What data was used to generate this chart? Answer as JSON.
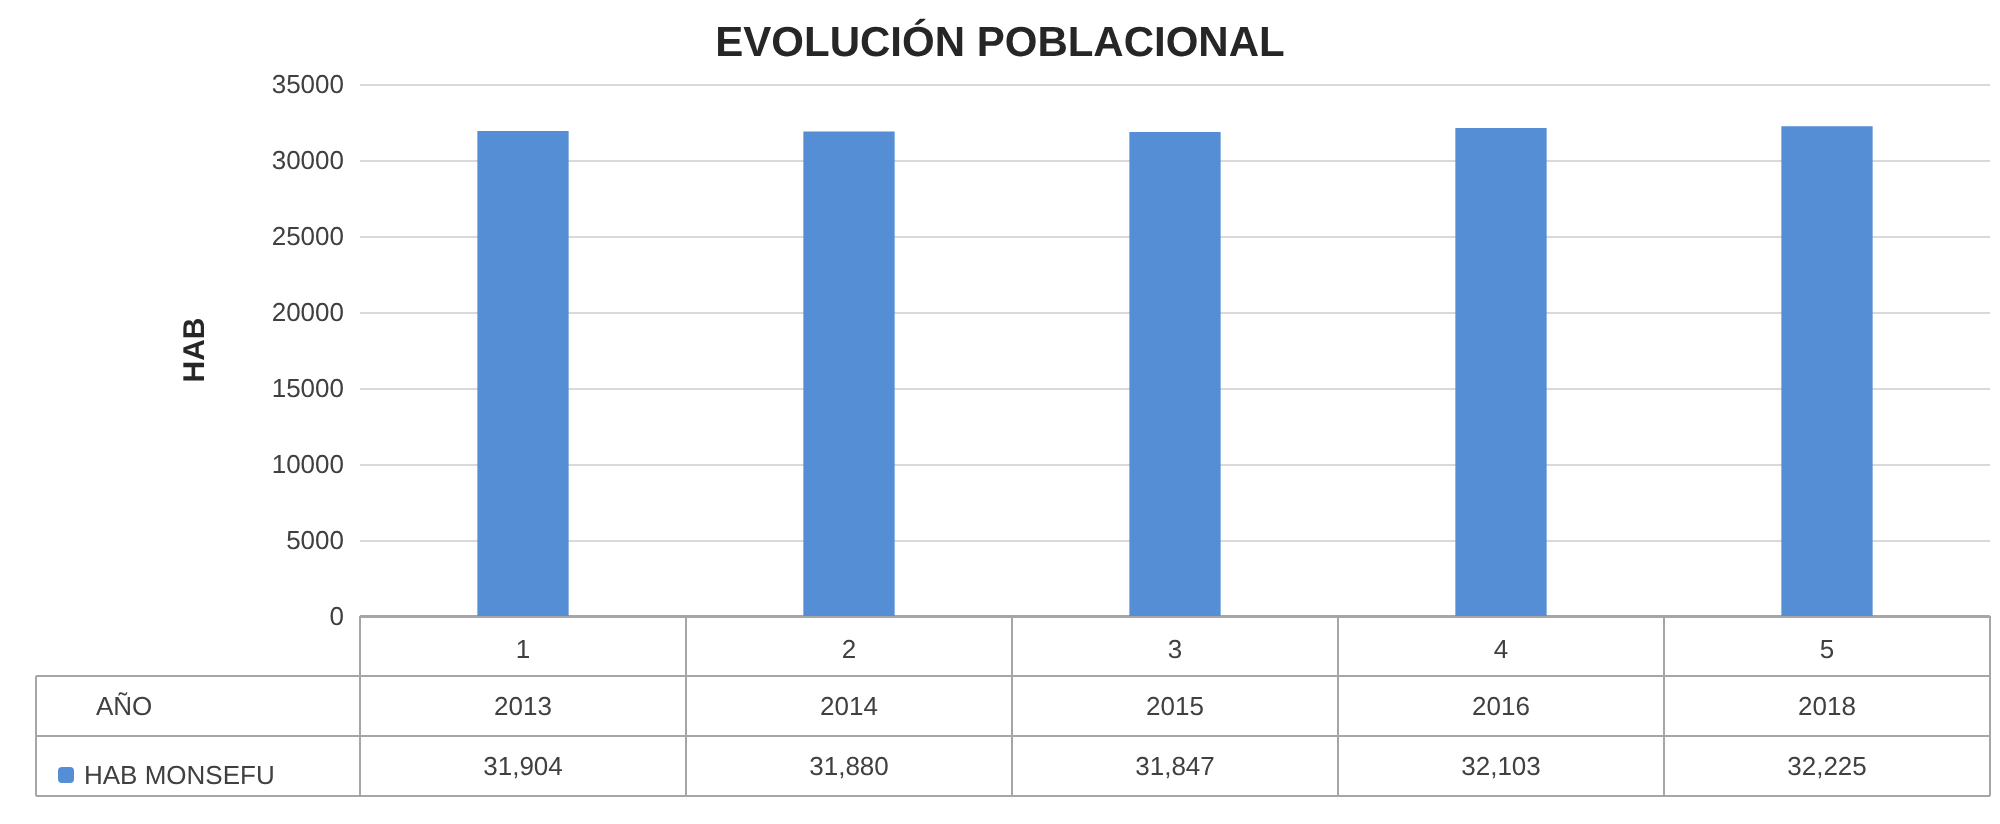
{
  "chart_data": {
    "type": "bar",
    "title": "EVOLUCIÓN POBLACIONAL",
    "ylabel": "HAB",
    "categories": [
      "1",
      "2",
      "3",
      "4",
      "5"
    ],
    "series": [
      {
        "name": "HAB MONSEFU",
        "color": "#558ed5",
        "values": [
          31904,
          31880,
          31847,
          32103,
          32225
        ],
        "value_labels": [
          "31,904",
          "31,880",
          "31,847",
          "32,103",
          "32,225"
        ]
      }
    ],
    "ylim": [
      0,
      35000
    ],
    "yticks": [
      0,
      5000,
      10000,
      15000,
      20000,
      25000,
      30000,
      35000
    ],
    "grid": "y",
    "legend": "bottom",
    "annotations": [
      "AÑO",
      "2013",
      "2014",
      "2015",
      "2016",
      "2018"
    ]
  }
}
